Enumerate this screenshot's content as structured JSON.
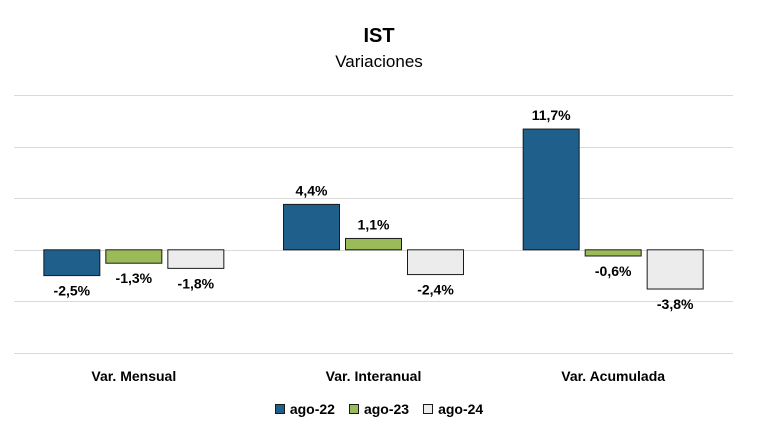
{
  "chart_data": {
    "type": "bar",
    "title": "IST",
    "subtitle": "Variaciones",
    "categories": [
      "Var. Mensual",
      "Var. Interanual",
      "Var. Acumulada"
    ],
    "series": [
      {
        "name": "ago-22",
        "color": "#1f5f8b",
        "values": [
          -2.5,
          4.4,
          11.7
        ],
        "labels": [
          "-2,5%",
          "4,4%",
          "11,7%"
        ]
      },
      {
        "name": "ago-23",
        "color": "#9bbb59",
        "values": [
          -1.3,
          1.1,
          -0.6
        ],
        "labels": [
          "-1,3%",
          "1,1%",
          "-0,6%"
        ]
      },
      {
        "name": "ago-24",
        "color": "#ececec",
        "values": [
          -1.8,
          -2.4,
          -3.8
        ],
        "labels": [
          "-1,8%",
          "-2,4%",
          "-3,8%"
        ]
      }
    ],
    "ylim": [
      -10,
      15
    ],
    "grid": true,
    "legend_position": "bottom"
  }
}
